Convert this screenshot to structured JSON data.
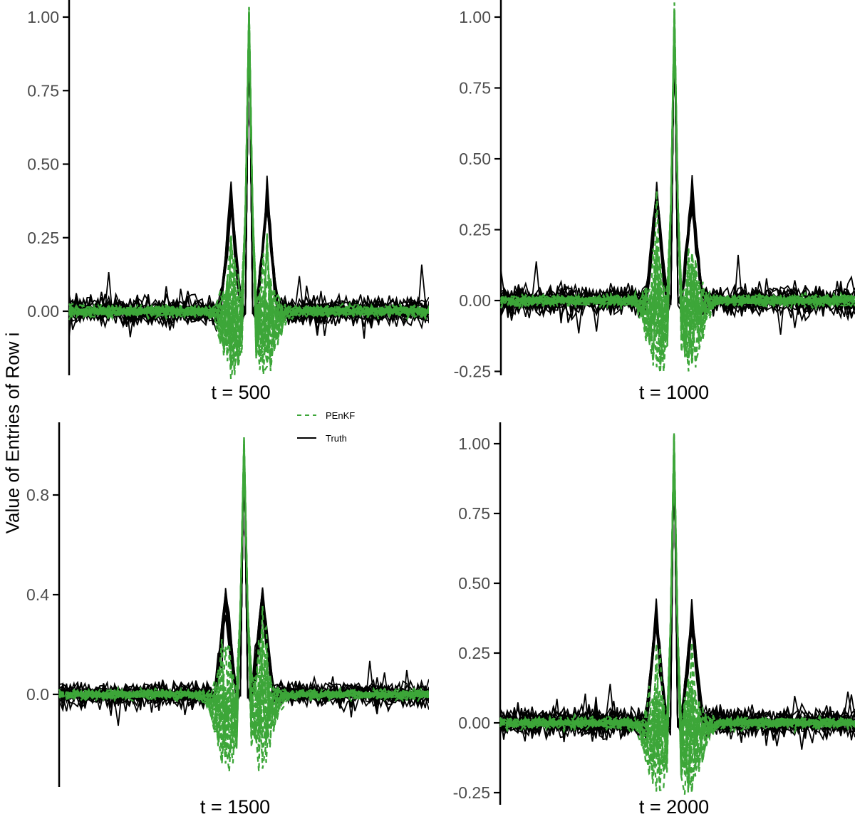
{
  "figure": {
    "ylabel": "Value of Entries of Row i",
    "background": "#ffffff",
    "axis_color": "#000000",
    "tick_label_color": "#4d4d4d"
  },
  "legend": {
    "items": [
      {
        "label": "PEnKF",
        "color": "#3DA639",
        "style": "dashed"
      },
      {
        "label": "Truth",
        "color": "#000000",
        "style": "solid"
      }
    ]
  },
  "chart_data": [
    {
      "type": "line",
      "title": "t = 500",
      "x_axis": {
        "hidden": true,
        "range": [
          0,
          100
        ],
        "center_index": 50
      },
      "ylim": [
        -0.23,
        1.07
      ],
      "y_ticks": [
        {
          "label": "1.00",
          "value": 1.0
        },
        {
          "label": "0.75",
          "value": 0.75
        },
        {
          "label": "0.50",
          "value": 0.5
        },
        {
          "label": "0.25",
          "value": 0.25
        },
        {
          "label": "0.00",
          "value": 0.0
        }
      ],
      "series": [
        {
          "name": "Truth",
          "color": "#000000",
          "style": "solid",
          "n_lines": 18,
          "baseline_noise_sd": 0.022,
          "center_peak": 1.0,
          "side_peaks": {
            "offset": 5,
            "height": 0.385,
            "half_width": 2.8
          }
        },
        {
          "name": "PEnKF",
          "color": "#3DA639",
          "style": "dashed",
          "n_lines": 25,
          "baseline_noise_sd": 0.009,
          "center_peak": 1.0,
          "near_center_spread_min": -0.24,
          "near_center_spread_max": 0.3
        }
      ],
      "seed": 11
    },
    {
      "type": "line",
      "title": "t = 1000",
      "x_axis": {
        "hidden": true,
        "range": [
          0,
          100
        ],
        "center_index": 49
      },
      "ylim": [
        -0.27,
        1.06
      ],
      "y_ticks": [
        {
          "label": "1.00",
          "value": 1.0
        },
        {
          "label": "0.75",
          "value": 0.75
        },
        {
          "label": "0.50",
          "value": 0.5
        },
        {
          "label": "0.25",
          "value": 0.25
        },
        {
          "label": "0.00",
          "value": 0.0
        },
        {
          "label": "-0.25",
          "value": -0.25
        }
      ],
      "series": [
        {
          "name": "Truth",
          "color": "#000000",
          "style": "solid",
          "n_lines": 18,
          "baseline_noise_sd": 0.024,
          "center_peak": 1.0,
          "side_peaks": {
            "offset": 5,
            "height": 0.37,
            "half_width": 2.8
          }
        },
        {
          "name": "PEnKF",
          "color": "#3DA639",
          "style": "dashed",
          "n_lines": 25,
          "baseline_noise_sd": 0.009,
          "center_peak": 1.0,
          "near_center_spread_min": -0.28,
          "near_center_spread_max": 0.3
        }
      ],
      "seed": 22
    },
    {
      "type": "line",
      "title": "t = 1500",
      "x_axis": {
        "hidden": true,
        "range": [
          0,
          100
        ],
        "center_index": 50
      },
      "ylim": [
        -0.36,
        1.09
      ],
      "y_ticks": [
        {
          "label": "0.8",
          "value": 0.8
        },
        {
          "label": "0.4",
          "value": 0.4
        },
        {
          "label": "0.0",
          "value": 0.0
        }
      ],
      "series": [
        {
          "name": "Truth",
          "color": "#000000",
          "style": "solid",
          "n_lines": 18,
          "baseline_noise_sd": 0.023,
          "center_peak": 1.0,
          "side_peaks": {
            "offset": 5,
            "height": 0.38,
            "half_width": 2.8
          }
        },
        {
          "name": "PEnKF",
          "color": "#3DA639",
          "style": "dashed",
          "n_lines": 25,
          "baseline_noise_sd": 0.009,
          "center_peak": 1.0,
          "near_center_spread_min": -0.33,
          "near_center_spread_max": 0.3
        }
      ],
      "seed": 33
    },
    {
      "type": "line",
      "title": "t = 2000",
      "x_axis": {
        "hidden": true,
        "range": [
          0,
          100
        ],
        "center_index": 49
      },
      "ylim": [
        -0.29,
        1.07
      ],
      "y_ticks": [
        {
          "label": "1.00",
          "value": 1.0
        },
        {
          "label": "0.75",
          "value": 0.75
        },
        {
          "label": "0.50",
          "value": 0.5
        },
        {
          "label": "0.25",
          "value": 0.25
        },
        {
          "label": "0.00",
          "value": 0.0
        },
        {
          "label": "-0.25",
          "value": -0.25
        }
      ],
      "series": [
        {
          "name": "Truth",
          "color": "#000000",
          "style": "solid",
          "n_lines": 18,
          "baseline_noise_sd": 0.025,
          "center_peak": 1.0,
          "side_peaks": {
            "offset": 5,
            "height": 0.375,
            "half_width": 2.8
          }
        },
        {
          "name": "PEnKF",
          "color": "#3DA639",
          "style": "dashed",
          "n_lines": 25,
          "baseline_noise_sd": 0.009,
          "center_peak": 1.0,
          "near_center_spread_min": -0.29,
          "near_center_spread_max": 0.3
        }
      ],
      "seed": 44
    }
  ]
}
